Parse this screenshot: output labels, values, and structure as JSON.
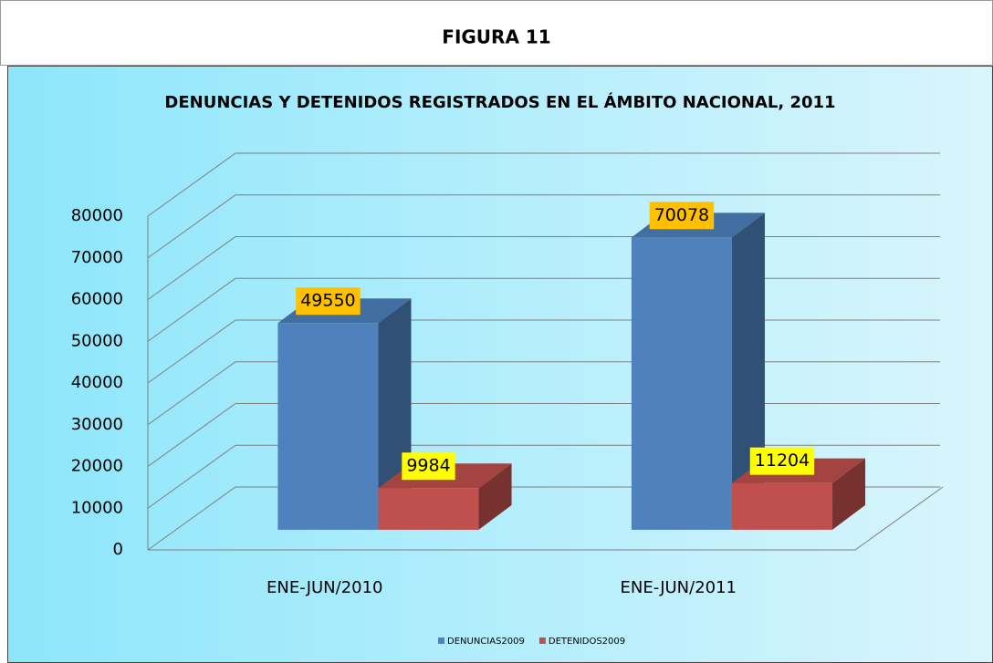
{
  "header": {
    "title": "FIGURA 11"
  },
  "chart_data": {
    "type": "bar",
    "title": "DENUNCIAS Y DETENIDOS REGISTRADOS EN  EL ÁMBITO NACIONAL, 2011",
    "categories": [
      "ENE-JUN/2010",
      "ENE-JUN/2011"
    ],
    "series": [
      {
        "name": "DENUNCIAS2009",
        "color": "#4f81bd",
        "label_color": "#ffc000",
        "values": [
          49550,
          70078
        ]
      },
      {
        "name": "DETENIDOS2009",
        "color": "#c0504d",
        "label_color": "#ffff00",
        "values": [
          9984,
          11204
        ]
      }
    ],
    "ylim": [
      0,
      80000
    ],
    "yticks": [
      0,
      10000,
      20000,
      30000,
      40000,
      50000,
      60000,
      70000,
      80000
    ],
    "grid": true,
    "legend": "bottom"
  }
}
